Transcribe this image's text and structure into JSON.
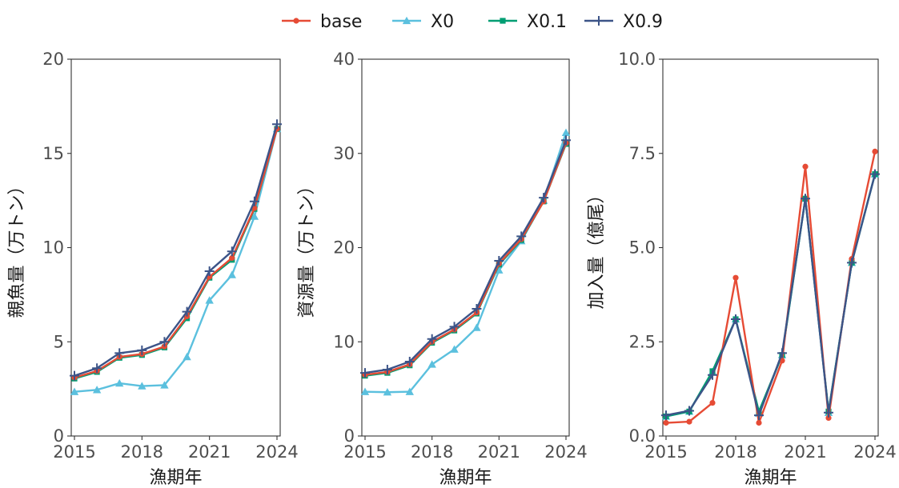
{
  "legend": {
    "items": [
      {
        "label": "base",
        "color": "#E64B35",
        "marker": "circle"
      },
      {
        "label": "X0",
        "color": "#5BC0DE",
        "marker": "triangle"
      },
      {
        "label": "X0.1",
        "color": "#009E73",
        "marker": "square"
      },
      {
        "label": "X0.9",
        "color": "#3C5488",
        "marker": "plus"
      }
    ]
  },
  "chart_data": [
    {
      "type": "line",
      "xlabel": "漁期年",
      "ylabel": "親魚量（万トン）",
      "x": [
        2015,
        2016,
        2017,
        2018,
        2019,
        2020,
        2021,
        2022,
        2023,
        2024
      ],
      "xticks": [
        "2015",
        "2018",
        "2021",
        "2024"
      ],
      "ylim": [
        0,
        20
      ],
      "yticks": [
        "0",
        "5",
        "10",
        "15",
        "20"
      ],
      "series": [
        {
          "name": "base",
          "values": [
            3.1,
            3.45,
            4.2,
            4.35,
            4.75,
            6.35,
            8.45,
            9.45,
            12.1,
            16.3
          ]
        },
        {
          "name": "X0",
          "values": [
            2.35,
            2.45,
            2.8,
            2.65,
            2.7,
            4.2,
            7.2,
            8.55,
            11.65,
            16.3
          ]
        },
        {
          "name": "X0.1",
          "values": [
            3.05,
            3.4,
            4.15,
            4.3,
            4.7,
            6.25,
            8.4,
            9.35,
            12.05,
            16.3
          ]
        },
        {
          "name": "X0.9",
          "values": [
            3.2,
            3.6,
            4.4,
            4.55,
            5.0,
            6.6,
            8.75,
            9.8,
            12.45,
            16.55
          ]
        }
      ]
    },
    {
      "type": "line",
      "xlabel": "漁期年",
      "ylabel": "資源量（万トン）",
      "x": [
        2015,
        2016,
        2017,
        2018,
        2019,
        2020,
        2021,
        2022,
        2023,
        2024
      ],
      "xticks": [
        "2015",
        "2018",
        "2021",
        "2024"
      ],
      "ylim": [
        0,
        40
      ],
      "yticks": [
        "0",
        "10",
        "20",
        "30",
        "40"
      ],
      "series": [
        {
          "name": "base",
          "values": [
            6.5,
            6.8,
            7.6,
            10.0,
            11.3,
            13.1,
            18.3,
            20.9,
            24.9,
            31.1
          ]
        },
        {
          "name": "X0",
          "values": [
            4.7,
            4.65,
            4.7,
            7.6,
            9.2,
            11.5,
            17.6,
            20.7,
            25.0,
            32.2
          ]
        },
        {
          "name": "X0.1",
          "values": [
            6.4,
            6.7,
            7.5,
            9.9,
            11.2,
            13.0,
            18.2,
            20.8,
            24.9,
            31.0
          ]
        },
        {
          "name": "X0.9",
          "values": [
            6.7,
            7.05,
            7.9,
            10.3,
            11.6,
            13.5,
            18.6,
            21.2,
            25.3,
            31.4
          ]
        }
      ]
    },
    {
      "type": "line",
      "xlabel": "漁期年",
      "ylabel": "加入量（億尾）",
      "x": [
        2015,
        2016,
        2017,
        2018,
        2019,
        2020,
        2021,
        2022,
        2023,
        2024
      ],
      "xticks": [
        "2015",
        "2018",
        "2021",
        "2024"
      ],
      "ylim": [
        0,
        10
      ],
      "yticks": [
        "0.0",
        "2.5",
        "5.0",
        "7.5",
        "10.0"
      ],
      "series": [
        {
          "name": "base",
          "values": [
            0.35,
            0.38,
            0.88,
            4.2,
            0.35,
            2.0,
            7.15,
            0.48,
            4.7,
            7.55
          ]
        },
        {
          "name": "X0",
          "values": [
            0.52,
            0.65,
            1.7,
            3.1,
            0.6,
            2.15,
            6.3,
            0.62,
            4.6,
            6.95
          ]
        },
        {
          "name": "X0.1",
          "values": [
            0.52,
            0.65,
            1.72,
            3.1,
            0.65,
            2.15,
            6.3,
            0.65,
            4.6,
            6.95
          ]
        },
        {
          "name": "X0.9",
          "values": [
            0.55,
            0.67,
            1.62,
            3.1,
            0.55,
            2.2,
            6.3,
            0.62,
            4.6,
            6.95
          ]
        }
      ]
    }
  ]
}
